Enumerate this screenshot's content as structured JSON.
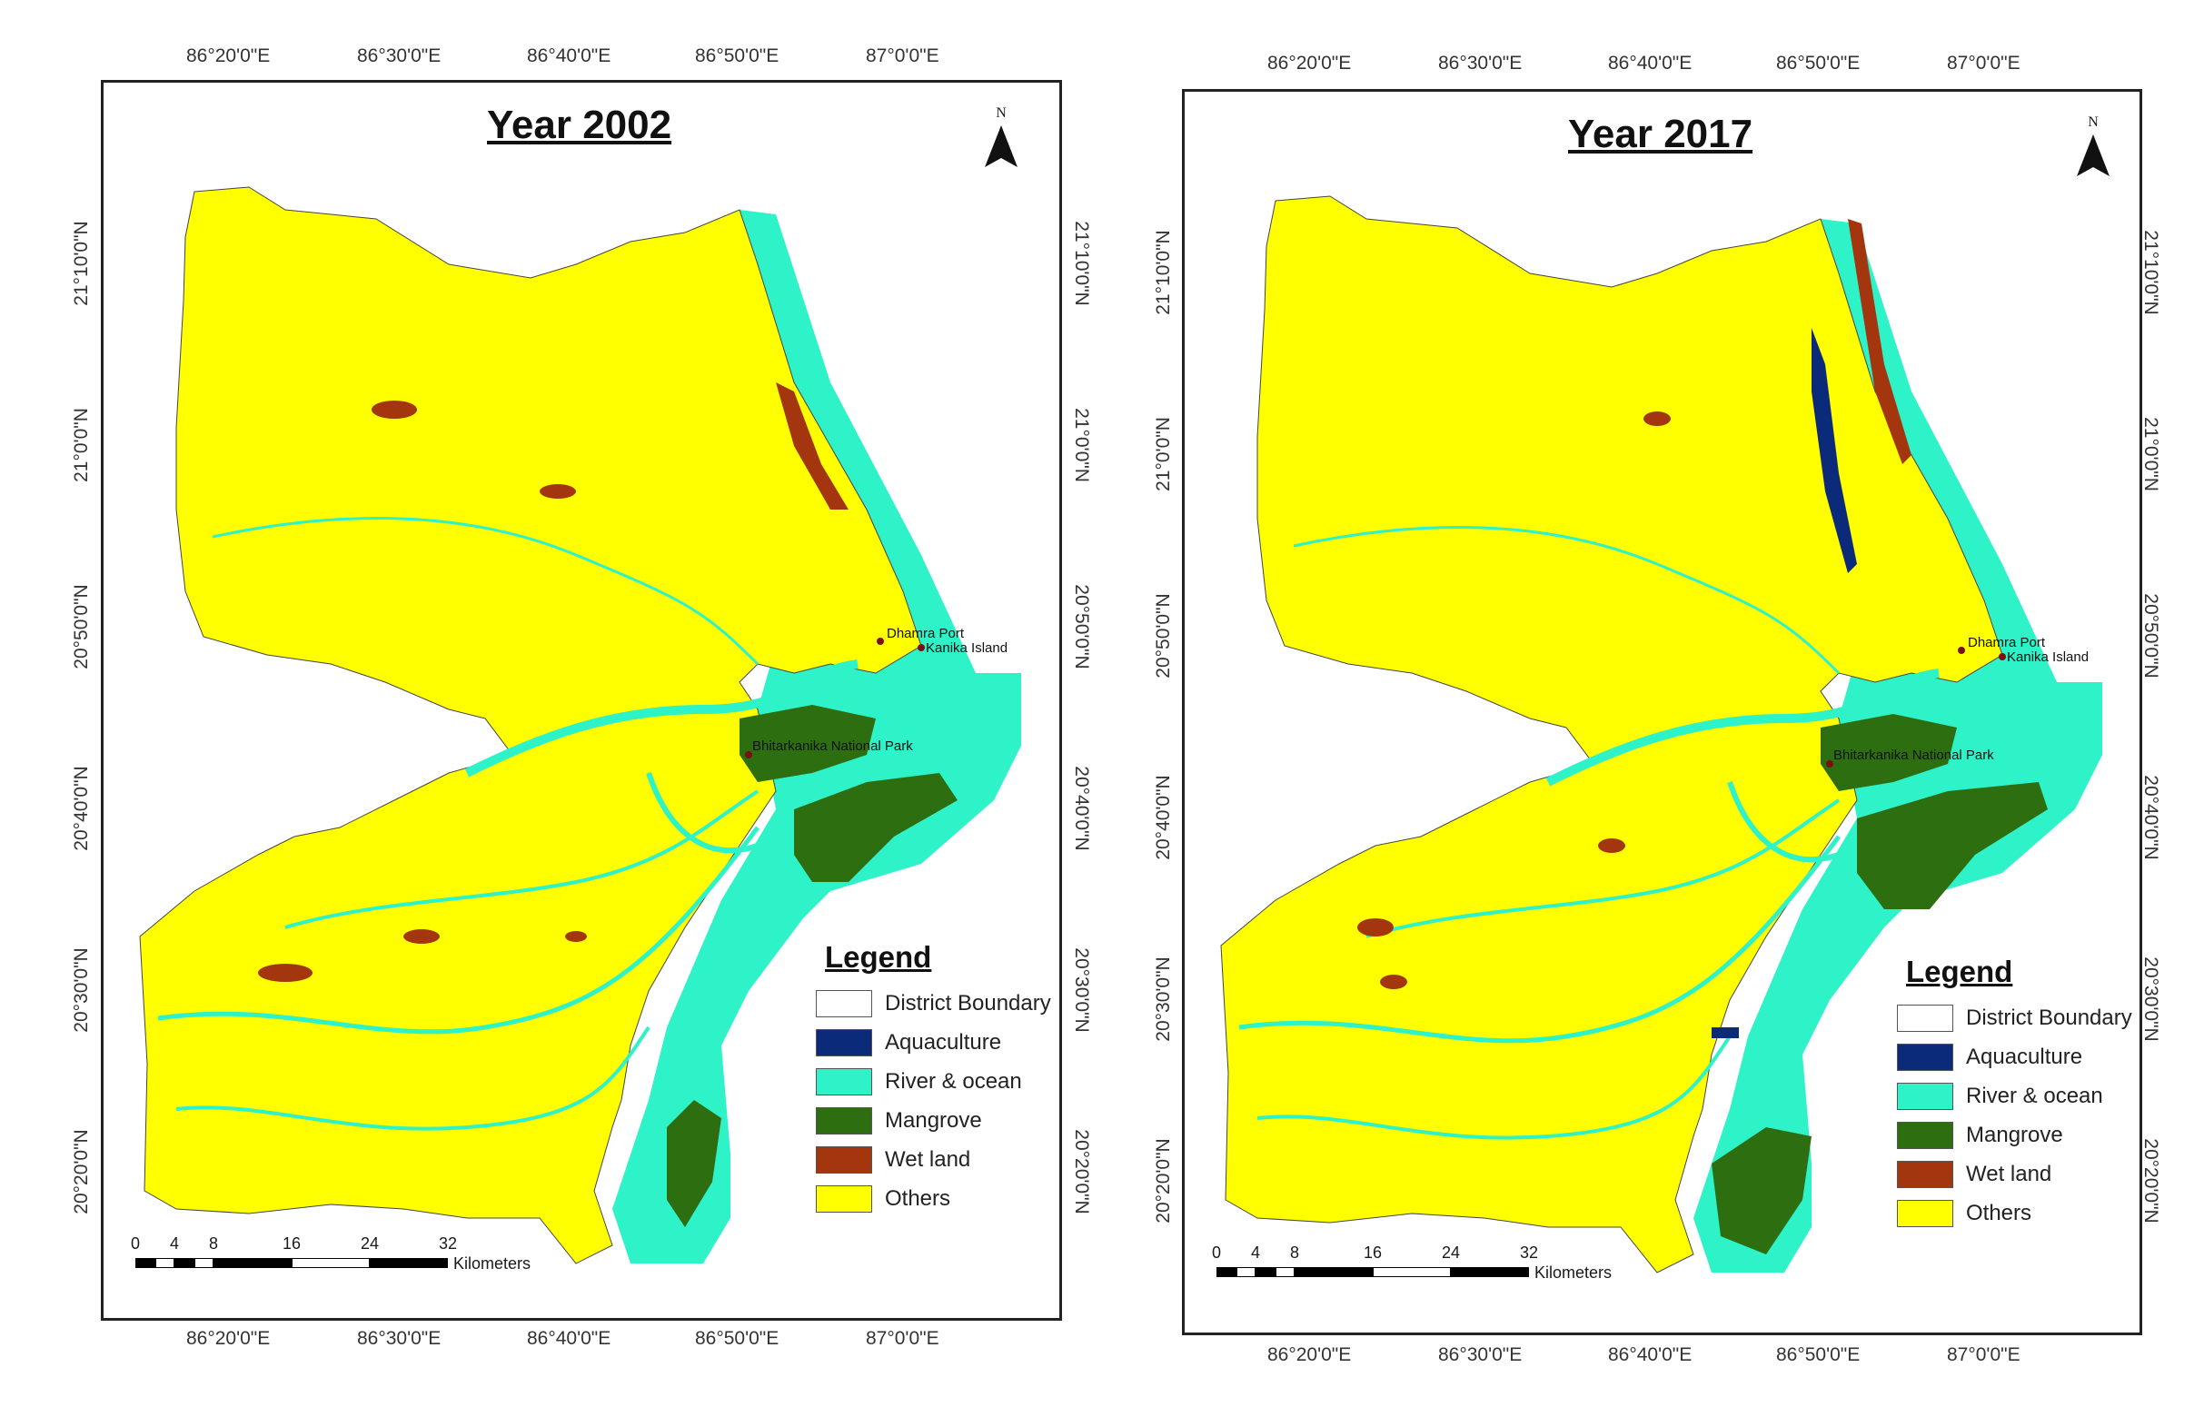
{
  "panels": [
    {
      "title": "Year 2002",
      "north_label": "N",
      "lon_labels": [
        "86°20'0\"E",
        "86°30'0\"E",
        "86°40'0\"E",
        "86°50'0\"E",
        "87°0'0\"E"
      ],
      "lat_labels": [
        "21°10'0\"N",
        "21°0'0\"N",
        "20°50'0\"N",
        "20°40'0\"N",
        "20°30'0\"N",
        "20°20'0\"N"
      ],
      "places": [
        "Dhamra Port",
        "Kanika Island",
        "Bhitarkanika National Park"
      ],
      "legend": {
        "title": "Legend",
        "items": [
          {
            "label": "District Boundary",
            "color": "#ffffff"
          },
          {
            "label": "Aquaculture",
            "color": "#0b2a7a"
          },
          {
            "label": "River & ocean",
            "color": "#2ef2c8"
          },
          {
            "label": "Mangrove",
            "color": "#2d6e10"
          },
          {
            "label": "Wet land",
            "color": "#a3360f"
          },
          {
            "label": "Others",
            "color": "#ffff00"
          }
        ]
      },
      "scale": {
        "ticks": [
          "0",
          "4",
          "8",
          "16",
          "24",
          "32"
        ],
        "unit": "Kilometers"
      }
    },
    {
      "title": "Year 2017",
      "north_label": "N",
      "lon_labels": [
        "86°20'0\"E",
        "86°30'0\"E",
        "86°40'0\"E",
        "86°50'0\"E",
        "87°0'0\"E"
      ],
      "lat_labels": [
        "21°10'0\"N",
        "21°0'0\"N",
        "20°50'0\"N",
        "20°40'0\"N",
        "20°30'0\"N",
        "20°20'0\"N"
      ],
      "places": [
        "Dhamra Port",
        "Kanika Island",
        "Bhitarkanika National Park"
      ],
      "legend": {
        "title": "Legend",
        "items": [
          {
            "label": "District Boundary",
            "color": "#ffffff"
          },
          {
            "label": "Aquaculture",
            "color": "#0b2a7a"
          },
          {
            "label": "River & ocean",
            "color": "#2ef2c8"
          },
          {
            "label": "Mangrove",
            "color": "#2d6e10"
          },
          {
            "label": "Wet land",
            "color": "#a3360f"
          },
          {
            "label": "Others",
            "color": "#ffff00"
          }
        ]
      },
      "scale": {
        "ticks": [
          "0",
          "4",
          "8",
          "16",
          "24",
          "32"
        ],
        "unit": "Kilometers"
      }
    }
  ]
}
